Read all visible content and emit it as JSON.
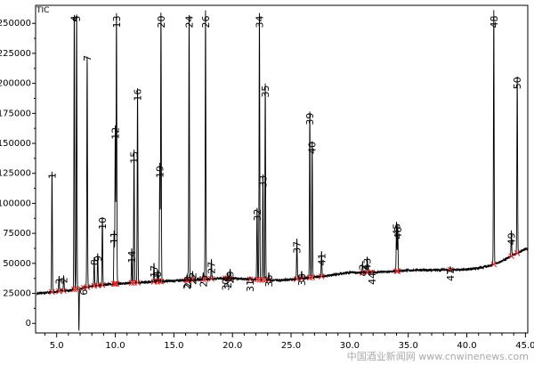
{
  "chart_data": {
    "type": "line",
    "title": "TIC",
    "xlabel": "",
    "ylabel": "",
    "xlim": [
      3.2,
      45.2
    ],
    "ylim": [
      -8000,
      265000
    ],
    "x_ticks": [
      5.0,
      10.0,
      15.0,
      20.0,
      25.0,
      30.0,
      35.0,
      40.0,
      45.0
    ],
    "y_ticks": [
      0,
      25000,
      50000,
      75000,
      100000,
      125000,
      150000,
      175000,
      200000,
      225000,
      250000
    ],
    "x_tick_labels": [
      "5.0",
      "10.0",
      "15.0",
      "20.0",
      "25.0",
      "30.0",
      "35.0",
      "40.0",
      "45.0"
    ],
    "y_tick_labels": [
      "0",
      "25000",
      "50000",
      "75000",
      "100000",
      "125000",
      "150000",
      "175000",
      "200000",
      "225000",
      "250000"
    ],
    "grid": false,
    "baseline": [
      [
        3.3,
        25000
      ],
      [
        4.0,
        25500
      ],
      [
        5.0,
        26500
      ],
      [
        6.0,
        27500
      ],
      [
        7.0,
        29000
      ],
      [
        8.0,
        31000
      ],
      [
        9.0,
        32000
      ],
      [
        10.0,
        33000
      ],
      [
        11.0,
        33500
      ],
      [
        12.0,
        34000
      ],
      [
        13.0,
        34500
      ],
      [
        14.0,
        35000
      ],
      [
        15.0,
        35500
      ],
      [
        16.0,
        36000
      ],
      [
        17.0,
        36500
      ],
      [
        18.0,
        37000
      ],
      [
        19.0,
        37500
      ],
      [
        20.0,
        37500
      ],
      [
        21.0,
        37000
      ],
      [
        22.0,
        36500
      ],
      [
        23.0,
        36000
      ],
      [
        24.0,
        36000
      ],
      [
        25.0,
        36500
      ],
      [
        26.0,
        37500
      ],
      [
        27.0,
        38500
      ],
      [
        28.0,
        39500
      ],
      [
        29.0,
        41000
      ],
      [
        30.0,
        42500
      ],
      [
        31.0,
        42000
      ],
      [
        32.0,
        42500
      ],
      [
        33.0,
        43000
      ],
      [
        34.0,
        43500
      ],
      [
        35.0,
        44000
      ],
      [
        36.0,
        44500
      ],
      [
        37.0,
        44500
      ],
      [
        38.0,
        44500
      ],
      [
        39.0,
        44500
      ],
      [
        40.0,
        45000
      ],
      [
        41.0,
        46000
      ],
      [
        42.0,
        48000
      ],
      [
        43.0,
        52000
      ],
      [
        44.0,
        57000
      ],
      [
        45.0,
        62000
      ]
    ],
    "peaks": [
      {
        "label": "1",
        "rt": 4.6,
        "height": 127000
      },
      {
        "label": "2",
        "rt": 5.6,
        "height": 40000
      },
      {
        "label": "3",
        "rt": 5.2,
        "height": 39000
      },
      {
        "label": "4",
        "rt": 6.5,
        "height": 260000
      },
      {
        "label": "5",
        "rt": 6.7,
        "height": 260000
      },
      {
        "label": "6",
        "rt": 7.3,
        "height": 30000
      },
      {
        "label": "7",
        "rt": 7.6,
        "height": 225000
      },
      {
        "label": "8",
        "rt": 8.2,
        "height": 55000
      },
      {
        "label": "9",
        "rt": 8.5,
        "height": 58000
      },
      {
        "label": "10",
        "rt": 8.9,
        "height": 90000
      },
      {
        "label": "11",
        "rt": 9.9,
        "height": 78000
      },
      {
        "label": "12",
        "rt": 10.0,
        "height": 165000
      },
      {
        "label": "13",
        "rt": 10.1,
        "height": 260000
      },
      {
        "label": "14",
        "rt": 11.4,
        "height": 62000
      },
      {
        "label": "15",
        "rt": 11.6,
        "height": 145000
      },
      {
        "label": "16",
        "rt": 11.9,
        "height": 197000
      },
      {
        "label": "17",
        "rt": 13.3,
        "height": 50000
      },
      {
        "label": "18",
        "rt": 13.6,
        "height": 45000
      },
      {
        "label": "19",
        "rt": 13.8,
        "height": 133000
      },
      {
        "label": "20",
        "rt": 13.9,
        "height": 260000
      },
      {
        "label": "21",
        "rt": 16.1,
        "height": 40000
      },
      {
        "label": "22",
        "rt": 16.6,
        "height": 44000
      },
      {
        "label": "23",
        "rt": 16.2,
        "height": 41000
      },
      {
        "label": "24",
        "rt": 16.3,
        "height": 260000
      },
      {
        "label": "25",
        "rt": 17.5,
        "height": 42000
      },
      {
        "label": "26",
        "rt": 17.7,
        "height": 260000
      },
      {
        "label": "27",
        "rt": 18.2,
        "height": 53000
      },
      {
        "label": "28",
        "rt": 19.6,
        "height": 41000
      },
      {
        "label": "29",
        "rt": 19.8,
        "height": 45000
      },
      {
        "label": "30",
        "rt": 19.4,
        "height": 39000
      },
      {
        "label": "31",
        "rt": 21.5,
        "height": 38000
      },
      {
        "label": "32",
        "rt": 22.1,
        "height": 97000
      },
      {
        "label": "33",
        "rt": 22.6,
        "height": 125000
      },
      {
        "label": "34",
        "rt": 22.3,
        "height": 260000
      },
      {
        "label": "35",
        "rt": 22.8,
        "height": 200000
      },
      {
        "label": "36",
        "rt": 23.1,
        "height": 42000
      },
      {
        "label": "37",
        "rt": 25.5,
        "height": 70000
      },
      {
        "label": "38",
        "rt": 25.9,
        "height": 43000
      },
      {
        "label": "39",
        "rt": 26.6,
        "height": 177000
      },
      {
        "label": "40",
        "rt": 26.8,
        "height": 153000
      },
      {
        "label": "41",
        "rt": 27.6,
        "height": 60000
      },
      {
        "label": "42",
        "rt": 31.1,
        "height": 51000
      },
      {
        "label": "43",
        "rt": 31.5,
        "height": 56000
      },
      {
        "label": "44",
        "rt": 31.9,
        "height": 44000
      },
      {
        "label": "45",
        "rt": 34.0,
        "height": 85000
      },
      {
        "label": "46",
        "rt": 34.1,
        "height": 82000
      },
      {
        "label": "47",
        "rt": 38.6,
        "height": 47000
      },
      {
        "label": "48",
        "rt": 42.3,
        "height": 262000
      },
      {
        "label": "49",
        "rt": 43.8,
        "height": 77000
      },
      {
        "label": "50",
        "rt": 44.3,
        "height": 207000
      }
    ],
    "dip": {
      "rt": 6.9,
      "value": -7000
    }
  },
  "watermark": {
    "text": "中国酒业新闻网 www.cnwinenews.com"
  }
}
